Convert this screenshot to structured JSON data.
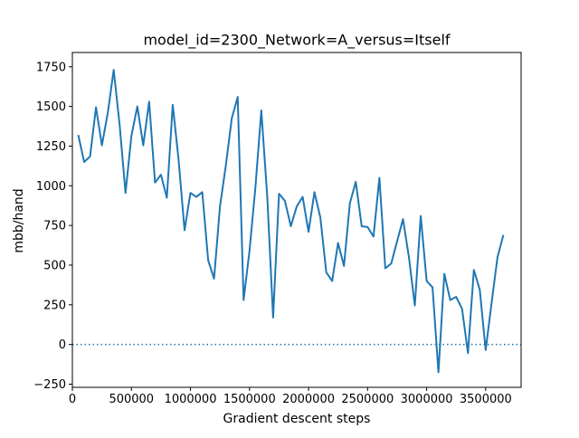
{
  "chart_data": {
    "type": "line",
    "title": "model_id=2300_Network=A_versus=Itself",
    "xlabel": "Gradient descent steps",
    "ylabel": "mbb/hand",
    "xlim": [
      0,
      3800000
    ],
    "ylim": [
      -270,
      1840
    ],
    "x_ticks": [
      0,
      500000,
      1000000,
      1500000,
      2000000,
      2500000,
      3000000,
      3500000
    ],
    "x_tick_labels": [
      "0",
      "500000",
      "1000000",
      "1500000",
      "2000000",
      "2500000",
      "3000000",
      "3500000"
    ],
    "y_ticks": [
      -250,
      0,
      250,
      500,
      750,
      1000,
      1250,
      1500,
      1750
    ],
    "y_tick_labels": [
      "−250",
      "0",
      "250",
      "500",
      "750",
      "1000",
      "1250",
      "1500",
      "1750"
    ],
    "grid": false,
    "reference_line": {
      "y": 0,
      "style": "dotted",
      "color": "#1f77b4"
    },
    "series": [
      {
        "color": "#1f77b4",
        "x": [
          50000,
          100000,
          150000,
          200000,
          250000,
          300000,
          350000,
          400000,
          450000,
          500000,
          550000,
          600000,
          650000,
          700000,
          750000,
          800000,
          850000,
          900000,
          950000,
          1000000,
          1050000,
          1100000,
          1150000,
          1200000,
          1250000,
          1300000,
          1350000,
          1400000,
          1450000,
          1500000,
          1550000,
          1600000,
          1650000,
          1700000,
          1750000,
          1800000,
          1850000,
          1900000,
          1950000,
          2000000,
          2050000,
          2100000,
          2150000,
          2200000,
          2250000,
          2300000,
          2350000,
          2400000,
          2450000,
          2500000,
          2550000,
          2600000,
          2650000,
          2700000,
          2750000,
          2800000,
          2850000,
          2900000,
          2950000,
          3000000,
          3050000,
          3100000,
          3150000,
          3200000,
          3250000,
          3300000,
          3350000,
          3400000,
          3450000,
          3500000,
          3550000,
          3600000,
          3650000
        ],
        "y": [
          1320,
          1150,
          1185,
          1495,
          1255,
          1460,
          1730,
          1385,
          955,
          1315,
          1500,
          1255,
          1530,
          1020,
          1070,
          925,
          1510,
          1160,
          720,
          955,
          930,
          960,
          530,
          415,
          870,
          1130,
          1425,
          1560,
          280,
          590,
          990,
          1475,
          935,
          170,
          950,
          905,
          745,
          870,
          930,
          710,
          960,
          800,
          455,
          400,
          640,
          495,
          890,
          1025,
          745,
          740,
          680,
          1050,
          480,
          510,
          650,
          790,
          550,
          245,
          810,
          400,
          360,
          -175,
          445,
          280,
          300,
          225,
          -55,
          470,
          345,
          -35,
          260,
          550,
          690
        ]
      }
    ]
  }
}
